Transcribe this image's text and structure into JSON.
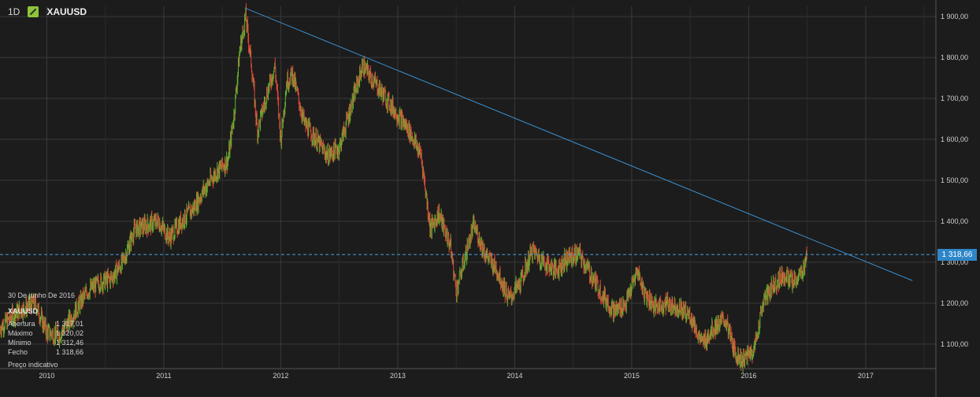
{
  "header": {
    "timeframe": "1D",
    "symbol": "XAUUSD"
  },
  "info_panel": {
    "date": "30 De junho De 2016",
    "symbol": "XAUUSD",
    "rows": [
      {
        "label": "Abertura",
        "value": "1 317,01"
      },
      {
        "label": "Máximo",
        "value": "1 320,02"
      },
      {
        "label": "Mínimo",
        "value": "1 312,46"
      },
      {
        "label": "Fecho",
        "value": "1 318,66"
      }
    ],
    "note": "Preço indicativo"
  },
  "current_price_label": "1 318,66",
  "colors": {
    "background": "#1c1c1c",
    "grid": "#3a3a3a",
    "up": "#5fb52e",
    "down": "#e0473a",
    "trendline": "#3a8fd0",
    "price_line": "#4aa3e0"
  },
  "chart_data": {
    "type": "candlestick",
    "instrument": "XAUUSD",
    "timeframe": "1D",
    "x_tick_labels": [
      "2010",
      "2011",
      "2012",
      "2013",
      "2014",
      "2015",
      "2016",
      "2017"
    ],
    "y_tick_labels": [
      "1 100,00",
      "1 200,00",
      "1 300,00",
      "1 400,00",
      "1 500,00",
      "1 600,00",
      "1 700,00",
      "1 800,00",
      "1 900,00"
    ],
    "y_ticks": [
      1100,
      1200,
      1300,
      1400,
      1500,
      1600,
      1700,
      1800,
      1900
    ],
    "ylim": [
      1040,
      1925
    ],
    "xlim": [
      2009.6,
      2017.6
    ],
    "close_series": [
      [
        2009.6,
        1140
      ],
      [
        2009.75,
        1180
      ],
      [
        2009.9,
        1200
      ],
      [
        2010.0,
        1130
      ],
      [
        2010.1,
        1120
      ],
      [
        2010.2,
        1160
      ],
      [
        2010.35,
        1230
      ],
      [
        2010.45,
        1250
      ],
      [
        2010.55,
        1260
      ],
      [
        2010.65,
        1300
      ],
      [
        2010.75,
        1380
      ],
      [
        2010.85,
        1390
      ],
      [
        2010.95,
        1400
      ],
      [
        2011.05,
        1360
      ],
      [
        2011.15,
        1400
      ],
      [
        2011.25,
        1430
      ],
      [
        2011.35,
        1480
      ],
      [
        2011.45,
        1520
      ],
      [
        2011.55,
        1550
      ],
      [
        2011.6,
        1660
      ],
      [
        2011.65,
        1820
      ],
      [
        2011.7,
        1900
      ],
      [
        2011.75,
        1780
      ],
      [
        2011.8,
        1620
      ],
      [
        2011.87,
        1700
      ],
      [
        2011.95,
        1780
      ],
      [
        2012.0,
        1600
      ],
      [
        2012.05,
        1740
      ],
      [
        2012.1,
        1760
      ],
      [
        2012.2,
        1640
      ],
      [
        2012.3,
        1600
      ],
      [
        2012.4,
        1560
      ],
      [
        2012.5,
        1580
      ],
      [
        2012.6,
        1680
      ],
      [
        2012.7,
        1780
      ],
      [
        2012.75,
        1760
      ],
      [
        2012.85,
        1720
      ],
      [
        2012.95,
        1680
      ],
      [
        2013.0,
        1660
      ],
      [
        2013.1,
        1620
      ],
      [
        2013.2,
        1560
      ],
      [
        2013.28,
        1380
      ],
      [
        2013.35,
        1420
      ],
      [
        2013.45,
        1340
      ],
      [
        2013.5,
        1230
      ],
      [
        2013.6,
        1340
      ],
      [
        2013.65,
        1390
      ],
      [
        2013.75,
        1320
      ],
      [
        2013.85,
        1280
      ],
      [
        2013.95,
        1210
      ],
      [
        2014.05,
        1250
      ],
      [
        2014.15,
        1330
      ],
      [
        2014.25,
        1300
      ],
      [
        2014.35,
        1280
      ],
      [
        2014.45,
        1310
      ],
      [
        2014.55,
        1320
      ],
      [
        2014.65,
        1270
      ],
      [
        2014.75,
        1220
      ],
      [
        2014.85,
        1180
      ],
      [
        2014.95,
        1200
      ],
      [
        2015.05,
        1280
      ],
      [
        2015.1,
        1230
      ],
      [
        2015.2,
        1190
      ],
      [
        2015.3,
        1200
      ],
      [
        2015.4,
        1190
      ],
      [
        2015.5,
        1170
      ],
      [
        2015.6,
        1100
      ],
      [
        2015.7,
        1140
      ],
      [
        2015.8,
        1160
      ],
      [
        2015.88,
        1080
      ],
      [
        2015.95,
        1060
      ],
      [
        2016.05,
        1090
      ],
      [
        2016.12,
        1200
      ],
      [
        2016.2,
        1240
      ],
      [
        2016.3,
        1270
      ],
      [
        2016.38,
        1250
      ],
      [
        2016.45,
        1270
      ],
      [
        2016.5,
        1318.66
      ]
    ],
    "trendline": {
      "start": [
        2011.7,
        1920
      ],
      "end": [
        2017.4,
        1255
      ]
    },
    "current_price": 1318.66
  }
}
